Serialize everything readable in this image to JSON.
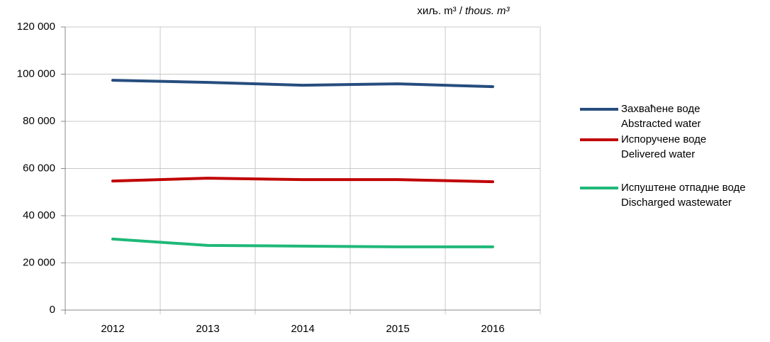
{
  "chart_data": {
    "type": "line",
    "unit_label": "хиљ. m³ /",
    "unit_label_en": "thous. m³",
    "categories": [
      "2012",
      "2013",
      "2014",
      "2015",
      "2016"
    ],
    "series": [
      {
        "name": "Захваћене воде",
        "name_en": "Abstracted water",
        "color": "#264d7e",
        "values": [
          97400,
          96500,
          95300,
          95900,
          94700
        ]
      },
      {
        "name": "Испоручене воде",
        "name_en": "Delivered water",
        "color": "#c00000",
        "values": [
          54700,
          55900,
          55300,
          55300,
          54400
        ]
      },
      {
        "name": "Испуштене отпадне воде",
        "name_en": "Discharged wastewater",
        "color": "#1fb878",
        "values": [
          30100,
          27400,
          27100,
          26800,
          26800
        ]
      }
    ],
    "ylim": [
      0,
      120000
    ],
    "yticks": [
      0,
      {
        "value": 20000,
        "label": "20 000"
      },
      {
        "value": 40000,
        "label": "40 000"
      },
      {
        "value": 60000,
        "label": "60 000"
      },
      {
        "value": 80000,
        "label": "80 000"
      },
      {
        "value": 100000,
        "label": "100 000"
      },
      {
        "value": 120000,
        "label": "120 000"
      }
    ],
    "grid": true,
    "legend": "right"
  }
}
